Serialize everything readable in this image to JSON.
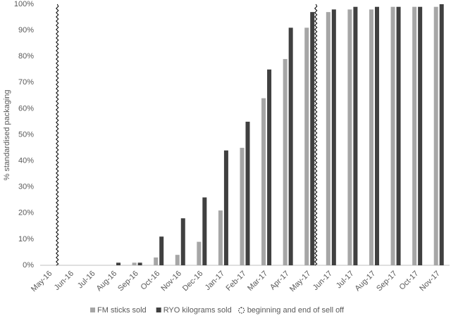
{
  "chart_data": {
    "type": "bar",
    "y_label": "% standardised packaging",
    "categories": [
      "May-16",
      "Jun-16",
      "Jul-16",
      "Aug-16",
      "Sep-16",
      "Oct-16",
      "Nov-16",
      "Dec-16",
      "Jan-17",
      "Feb-17",
      "Mar-17",
      "Apr-17",
      "May-17",
      "Jun-17",
      "Jul-17",
      "Aug-17",
      "Sep-17",
      "Oct-17",
      "Nov-17"
    ],
    "series": [
      {
        "name": "FM sticks sold",
        "color": "#a6a6a6",
        "values": [
          0,
          0,
          0,
          0,
          1,
          3,
          4,
          9,
          21,
          45,
          64,
          79,
          91,
          97,
          98,
          98,
          99,
          99,
          99
        ]
      },
      {
        "name": "RYO kilograms sold",
        "color": "#404040",
        "values": [
          0,
          0,
          0,
          1,
          1,
          11,
          18,
          26,
          44,
          55,
          75,
          91,
          97,
          98,
          99,
          99,
          99,
          99,
          100
        ]
      }
    ],
    "markers": {
      "name": "beginning and end of sell off",
      "categories": [
        "May-16",
        "May-17"
      ]
    },
    "ylim": [
      0,
      100
    ],
    "yticks": [
      {
        "value": 0,
        "label": "0%"
      },
      {
        "value": 10,
        "label": "10%"
      },
      {
        "value": 20,
        "label": "20%"
      },
      {
        "value": 30,
        "label": "30%"
      },
      {
        "value": 40,
        "label": "40%"
      },
      {
        "value": 50,
        "label": "50%"
      },
      {
        "value": 60,
        "label": "60%"
      },
      {
        "value": 70,
        "label": "70%"
      },
      {
        "value": 80,
        "label": "80%"
      },
      {
        "value": 90,
        "label": "90%"
      },
      {
        "value": 100,
        "label": "100%"
      }
    ],
    "grid": false,
    "legend": "bottom"
  }
}
